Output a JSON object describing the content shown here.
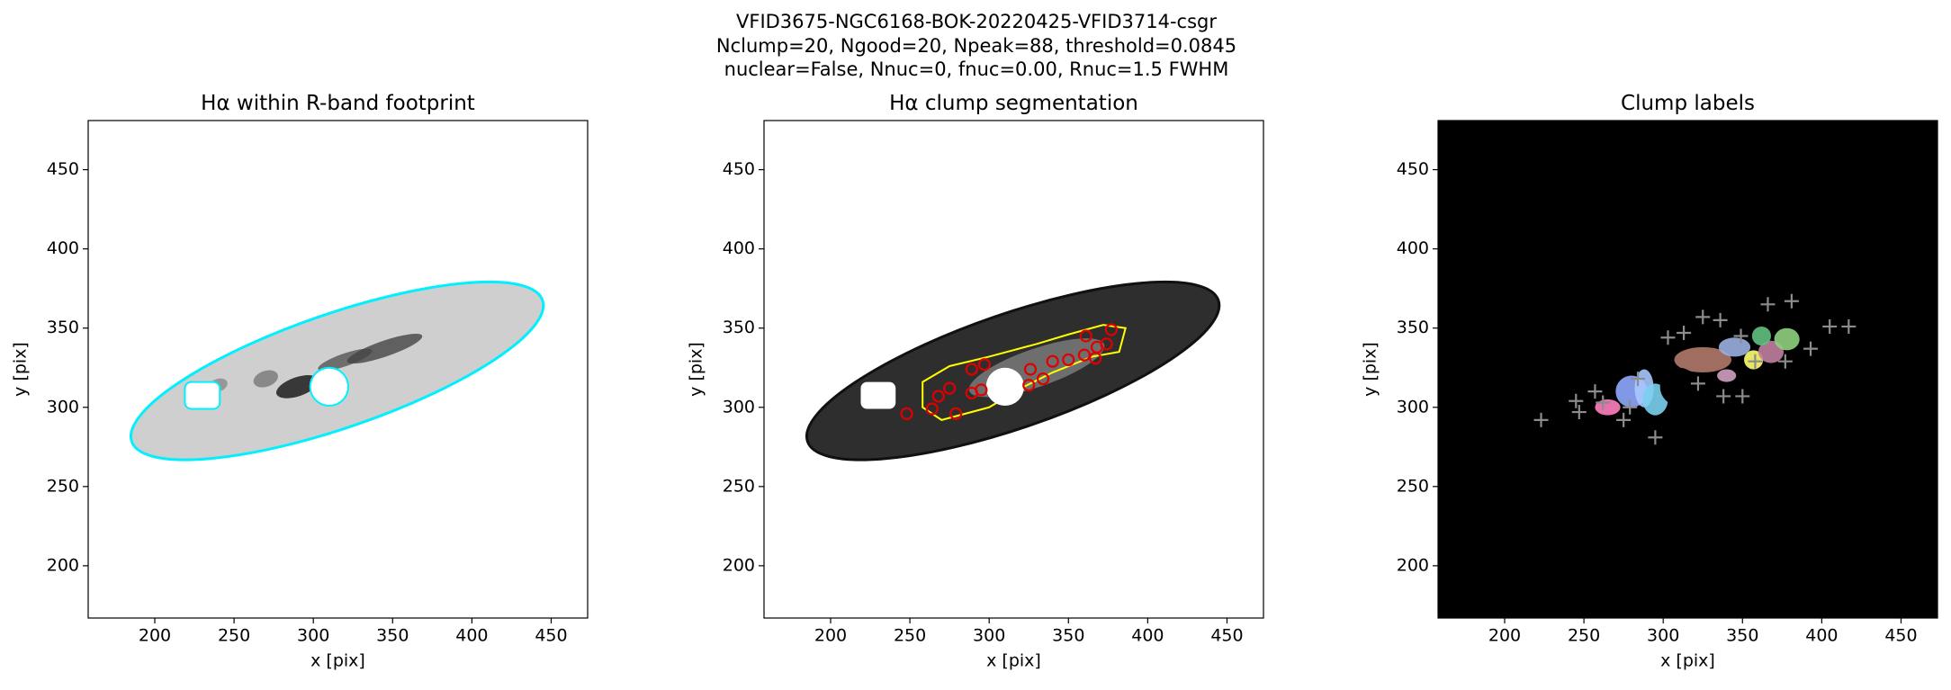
{
  "figure_title": [
    "VFID3675-NGC6168-BOK-20220425-VFID3714-csgr",
    "Nclump=20, Ngood=20, Npeak=88, threshold=0.0845",
    "nuclear=False, Nnuc=0, fnuc=0.00, Rnuc=1.5 FWHM"
  ],
  "chart_data": [
    {
      "type": "image",
      "title": "Hα within R-band footprint",
      "xlabel": "x [pix]",
      "ylabel": "y [pix]",
      "xlim": [
        158,
        473
      ],
      "ylim": [
        167,
        481
      ],
      "xticks": [
        200,
        250,
        300,
        350,
        400,
        450
      ],
      "yticks": [
        200,
        250,
        300,
        350,
        400,
        450
      ]
    },
    {
      "type": "image",
      "title": "Hα clump segmentation",
      "xlabel": "x [pix]",
      "ylabel": "y [pix]",
      "xlim": [
        158,
        473
      ],
      "ylim": [
        167,
        481
      ],
      "xticks": [
        200,
        250,
        300,
        350,
        400,
        450
      ],
      "yticks": [
        200,
        250,
        300,
        350,
        400,
        450
      ],
      "clumps": {
        "color": "#e00000",
        "x": [
          248,
          264,
          268,
          275,
          279,
          289,
          289,
          295,
          297,
          326,
          325,
          334,
          340,
          350,
          360,
          361,
          367,
          374,
          377,
          368
        ],
        "y": [
          296,
          299,
          307,
          312,
          296,
          309,
          324,
          311,
          327,
          324,
          314,
          318,
          329,
          330,
          333,
          345,
          331,
          340,
          349,
          338
        ]
      }
    },
    {
      "type": "image",
      "title": "Clump labels",
      "xlabel": "x [pix]",
      "ylabel": "y [pix]",
      "xlim": [
        158,
        473
      ],
      "ylim": [
        167,
        481
      ],
      "xticks": [
        200,
        250,
        300,
        350,
        400,
        450
      ],
      "yticks": [
        200,
        250,
        300,
        350,
        400,
        450
      ],
      "peaks": {
        "color": "#8c8c8c",
        "x": [
          223,
          245,
          247,
          257,
          262,
          275,
          279,
          295,
          284,
          303,
          313,
          325,
          336,
          349,
          366,
          381,
          377,
          393,
          405,
          417,
          338,
          322,
          350,
          358
        ],
        "y": [
          292,
          304,
          297,
          310,
          303,
          292,
          300,
          281,
          318,
          344,
          347,
          357,
          355,
          345,
          365,
          367,
          329,
          337,
          351,
          351,
          307,
          315,
          307,
          329
        ]
      }
    }
  ]
}
